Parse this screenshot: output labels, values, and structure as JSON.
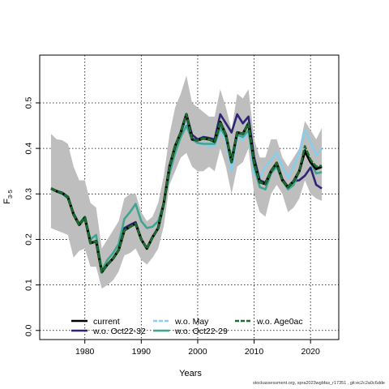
{
  "chart_data": {
    "type": "line",
    "ylabel": "F",
    "ylabel_sub": "3-5",
    "xlabel": "Years",
    "xlim": [
      1972,
      2025
    ],
    "ylim": [
      -0.02,
      0.605
    ],
    "x_ticks": [
      1980,
      1990,
      2000,
      2010,
      2020
    ],
    "y_ticks": [
      0.0,
      0.1,
      0.2,
      0.3,
      0.4,
      0.5
    ],
    "grid": true,
    "legend_position": "bottom",
    "x": [
      1974,
      1975,
      1976,
      1977,
      1978,
      1979,
      1980,
      1981,
      1982,
      1983,
      1984,
      1985,
      1986,
      1987,
      1988,
      1989,
      1990,
      1991,
      1992,
      1993,
      1994,
      1995,
      1996,
      1997,
      1998,
      1999,
      2000,
      2001,
      2002,
      2003,
      2004,
      2005,
      2006,
      2007,
      2008,
      2009,
      2010,
      2011,
      2012,
      2013,
      2014,
      2015,
      2016,
      2017,
      2018,
      2019,
      2020,
      2021,
      2022
    ],
    "band": {
      "upper": [
        0.432,
        0.42,
        0.418,
        0.41,
        0.36,
        0.33,
        0.33,
        0.28,
        0.27,
        0.18,
        0.2,
        0.22,
        0.24,
        0.29,
        0.3,
        0.3,
        0.26,
        0.24,
        0.25,
        0.28,
        0.34,
        0.43,
        0.49,
        0.52,
        0.56,
        0.5,
        0.49,
        0.48,
        0.47,
        0.47,
        0.53,
        0.49,
        0.44,
        0.52,
        0.51,
        0.53,
        0.42,
        0.38,
        0.38,
        0.42,
        0.42,
        0.38,
        0.36,
        0.38,
        0.4,
        0.46,
        0.44,
        0.42,
        0.445
      ],
      "lower": [
        0.225,
        0.22,
        0.215,
        0.21,
        0.16,
        0.175,
        0.18,
        0.14,
        0.14,
        0.092,
        0.1,
        0.11,
        0.13,
        0.165,
        0.17,
        0.18,
        0.155,
        0.145,
        0.16,
        0.18,
        0.23,
        0.32,
        0.35,
        0.38,
        0.39,
        0.36,
        0.35,
        0.35,
        0.36,
        0.35,
        0.4,
        0.36,
        0.3,
        0.36,
        0.37,
        0.4,
        0.3,
        0.26,
        0.25,
        0.3,
        0.32,
        0.3,
        0.26,
        0.27,
        0.29,
        0.33,
        0.3,
        0.29,
        0.285
      ]
    },
    "series": [
      {
        "name": "current",
        "color": "#000000",
        "dash": "solid",
        "width": 3.2,
        "values": [
          0.312,
          0.306,
          0.302,
          0.293,
          0.255,
          0.232,
          0.248,
          0.192,
          0.196,
          0.128,
          0.145,
          0.158,
          0.177,
          0.22,
          0.228,
          0.235,
          0.2,
          0.18,
          0.205,
          0.225,
          0.28,
          0.36,
          0.405,
          0.435,
          0.475,
          0.42,
          0.418,
          0.422,
          0.42,
          0.415,
          0.458,
          0.43,
          0.37,
          0.435,
          0.432,
          0.455,
          0.37,
          0.326,
          0.322,
          0.35,
          0.368,
          0.33,
          0.315,
          0.328,
          0.35,
          0.395,
          0.37,
          0.355,
          0.36
        ]
      },
      {
        "name": "w.o. Oct22-32",
        "color": "#2e2577",
        "dash": "solid",
        "width": 2.6,
        "values": [
          0.312,
          0.306,
          0.302,
          0.293,
          0.255,
          0.232,
          0.248,
          0.192,
          0.196,
          0.128,
          0.145,
          0.158,
          0.177,
          0.225,
          0.232,
          0.238,
          0.2,
          0.18,
          0.205,
          0.225,
          0.28,
          0.36,
          0.405,
          0.435,
          0.475,
          0.43,
          0.42,
          0.425,
          0.423,
          0.42,
          0.475,
          0.455,
          0.435,
          0.475,
          0.455,
          0.47,
          0.38,
          0.33,
          0.325,
          0.35,
          0.368,
          0.333,
          0.315,
          0.328,
          0.33,
          0.34,
          0.358,
          0.32,
          0.312
        ]
      },
      {
        "name": "w.o. May",
        "color": "#87ceeb",
        "dash": "solid",
        "width": 2.6,
        "values": [
          0.312,
          0.306,
          0.302,
          0.293,
          0.255,
          0.232,
          0.248,
          0.192,
          0.196,
          0.128,
          0.145,
          0.158,
          0.177,
          0.22,
          0.228,
          0.235,
          0.2,
          0.18,
          0.205,
          0.225,
          0.28,
          0.36,
          0.405,
          0.43,
          0.455,
          0.425,
          0.41,
          0.41,
          0.405,
          0.405,
          0.44,
          0.42,
          0.35,
          0.425,
          0.418,
          0.44,
          0.345,
          0.335,
          0.36,
          0.375,
          0.39,
          0.36,
          0.335,
          0.36,
          0.39,
          0.44,
          0.415,
          0.385,
          0.4
        ]
      },
      {
        "name": "w.o. Oct22-29",
        "color": "#3fa590",
        "dash": "solid",
        "width": 2.6,
        "values": [
          0.312,
          0.305,
          0.3,
          0.29,
          0.258,
          0.235,
          0.25,
          0.2,
          0.21,
          0.132,
          0.155,
          0.17,
          0.19,
          0.245,
          0.26,
          0.278,
          0.24,
          0.225,
          0.228,
          0.24,
          0.28,
          0.345,
          0.39,
          0.425,
          0.45,
          0.42,
          0.412,
          0.41,
          0.41,
          0.41,
          0.445,
          0.425,
          0.38,
          0.43,
          0.425,
          0.44,
          0.36,
          0.315,
          0.31,
          0.345,
          0.36,
          0.33,
          0.31,
          0.32,
          0.35,
          0.395,
          0.37,
          0.345,
          0.348
        ]
      },
      {
        "name": "w.o. Age0ac",
        "color": "#1b6e2e",
        "dash": "dashed",
        "width": 2.6,
        "values": [
          0.312,
          0.306,
          0.302,
          0.293,
          0.255,
          0.232,
          0.248,
          0.192,
          0.196,
          0.128,
          0.145,
          0.158,
          0.177,
          0.22,
          0.228,
          0.235,
          0.2,
          0.18,
          0.205,
          0.225,
          0.28,
          0.36,
          0.405,
          0.435,
          0.475,
          0.42,
          0.418,
          0.422,
          0.42,
          0.415,
          0.458,
          0.43,
          0.37,
          0.435,
          0.432,
          0.455,
          0.37,
          0.326,
          0.322,
          0.35,
          0.368,
          0.33,
          0.315,
          0.328,
          0.35,
          0.405,
          0.375,
          0.36,
          0.362
        ]
      }
    ]
  },
  "footer_text": "stockassessment.org, spra2023wgbfas_r17351 , git:ec2c2a0c6dde"
}
